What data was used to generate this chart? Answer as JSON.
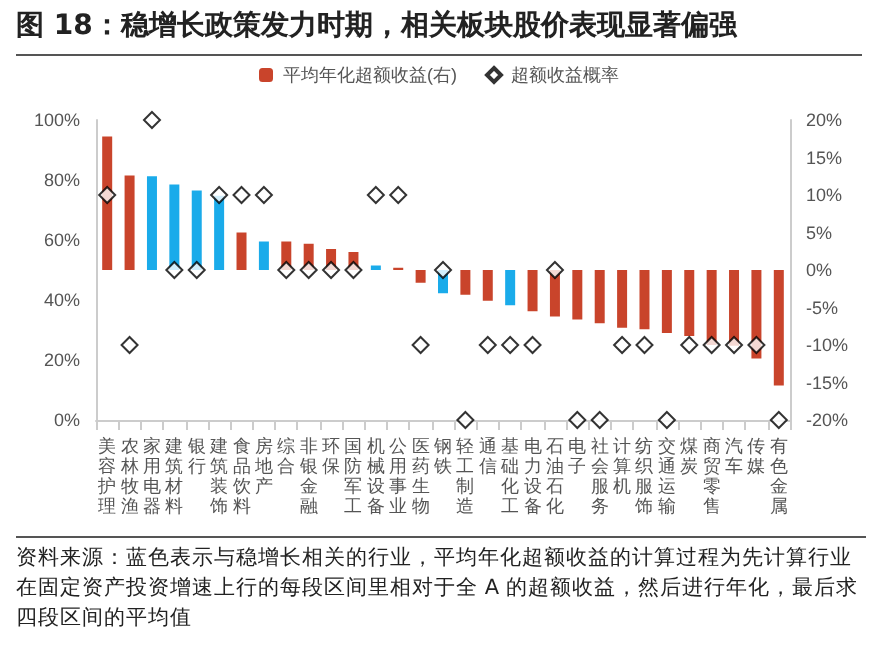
{
  "chart_data": {
    "type": "bar",
    "title": "图 18：稳增长政策发力时期，相关板块股价表现显著偏强",
    "categories": [
      "美容护理",
      "农林牧渔",
      "家用电器",
      "建筑材料",
      "银行",
      "建筑装饰",
      "食品饮料",
      "房地产",
      "综合",
      "非银金融",
      "环保",
      "国防军工",
      "机械设备",
      "公用事业",
      "医药生物",
      "钢铁",
      "轻工制造",
      "通信",
      "基础化工",
      "电力设备",
      "石油石化",
      "电子",
      "社会服务",
      "计算机",
      "纺织服饰",
      "交通运输",
      "煤炭",
      "商贸零售",
      "汽车",
      "传媒",
      "有色金属"
    ],
    "series": [
      {
        "name": "平均年化超额收益(右)",
        "axis": "y2",
        "color": "#c9442b",
        "colors": [
          "#c9442b",
          "#c9442b",
          "#1aabea",
          "#1aabea",
          "#1aabea",
          "#1aabea",
          "#c9442b",
          "#1aabea",
          "#c9442b",
          "#c9442b",
          "#c9442b",
          "#c9442b",
          "#1aabea",
          "#c9442b",
          "#c9442b",
          "#1aabea",
          "#c9442b",
          "#c9442b",
          "#1aabea",
          "#c9442b",
          "#c9442b",
          "#c9442b",
          "#c9442b",
          "#c9442b",
          "#c9442b",
          "#c9442b",
          "#c9442b",
          "#c9442b",
          "#c9442b",
          "#c9442b",
          "#c9442b"
        ],
        "values": [
          17.8,
          12.6,
          12.5,
          11.4,
          10.6,
          9.9,
          5.0,
          3.8,
          3.8,
          3.5,
          2.8,
          2.4,
          0.6,
          0.3,
          -1.7,
          -3.1,
          -3.3,
          -4.1,
          -4.7,
          -5.5,
          -6.2,
          -6.6,
          -7.1,
          -7.7,
          -7.9,
          -8.4,
          -8.8,
          -10.0,
          -10.1,
          -11.8,
          -15.4
        ]
      },
      {
        "name": "超额收益概率",
        "type": "scatter",
        "marker": "diamond",
        "color": "#000000",
        "values": [
          75,
          25,
          100,
          50,
          50,
          75,
          75,
          75,
          50,
          50,
          50,
          50,
          75,
          75,
          25,
          50,
          0,
          25,
          25,
          25,
          50,
          0,
          0,
          25,
          25,
          0,
          25,
          25,
          25,
          25,
          0
        ]
      }
    ],
    "ylim": [
      0,
      100
    ],
    "yticks": [
      {
        "value": 0,
        "label": "0%"
      },
      {
        "value": 20,
        "label": "20%"
      },
      {
        "value": 40,
        "label": "40%"
      },
      {
        "value": 60,
        "label": "60%"
      },
      {
        "value": 80,
        "label": "80%"
      },
      {
        "value": 100,
        "label": "100%"
      }
    ],
    "y2lim": [
      -20,
      20
    ],
    "y2ticks": [
      {
        "value": -20,
        "label": "-20%"
      },
      {
        "value": -15,
        "label": "-15%"
      },
      {
        "value": -10,
        "label": "-10%"
      },
      {
        "value": -5,
        "label": "-5%"
      },
      {
        "value": 0,
        "label": "0%"
      },
      {
        "value": 5,
        "label": "5%"
      },
      {
        "value": 10,
        "label": "10%"
      },
      {
        "value": 15,
        "label": "15%"
      },
      {
        "value": 20,
        "label": "20%"
      }
    ],
    "legend": "top",
    "grid": false,
    "annotations": [
      "资料来源：蓝色表示与稳增长相关的行业，平均年化超额收益的计算过程为先计算行业在固定资产投资增速上行的每段区间里相对于全 A 的超额收益，然后进行年化，最后求四段区间的平均值"
    ]
  }
}
